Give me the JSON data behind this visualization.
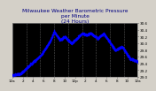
{
  "title": "Milwaukee Weather Barometric Pressure\nper Minute\n(24 Hours)",
  "bg_color": "#d4d0c8",
  "plot_bg_color": "#000000",
  "dot_color": "#0000ff",
  "grid_color": "#555555",
  "title_color": "#000080",
  "ylim": [
    29.0,
    30.6
  ],
  "xlim": [
    0,
    1440
  ],
  "ytick_values": [
    29.0,
    29.2,
    29.4,
    29.6,
    29.8,
    30.0,
    30.2,
    30.4,
    30.6
  ],
  "ytick_labels": [
    "29.0",
    "29.2",
    "29.4",
    "29.6",
    "29.8",
    "30.0",
    "30.2",
    "30.4",
    "30.6"
  ],
  "num_vgrid": 9,
  "dot_size": 1.2,
  "title_fontsize": 4.2,
  "tick_fontsize": 3.0,
  "pressure_waypoints_x": [
    0,
    100,
    200,
    330,
    430,
    480,
    550,
    600,
    680,
    720,
    800,
    850,
    900,
    980,
    1050,
    1100,
    1180,
    1260,
    1350,
    1440
  ],
  "pressure_waypoints_y": [
    29.05,
    29.1,
    29.35,
    29.65,
    30.05,
    30.35,
    30.1,
    30.2,
    30.0,
    30.1,
    30.3,
    30.25,
    30.3,
    30.15,
    30.3,
    30.1,
    29.8,
    29.9,
    29.55,
    29.45
  ]
}
